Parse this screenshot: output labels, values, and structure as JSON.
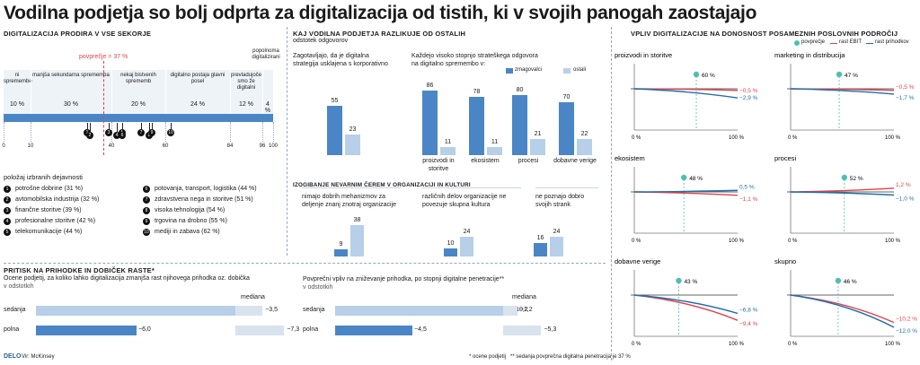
{
  "title": "Vodilna podjetja so bolj odprta za digitalizacija od tistih, ki v svojih panogah zaostajajo",
  "panel1": {
    "heading": "DIGITALIZACIJA PRODIRA V VSE SEKORJE",
    "avg_label": "povprečje = 37 %",
    "top_note": "popolnoma digitalizirani",
    "segments": [
      {
        "label": "ni spremembe",
        "pct": "10 %"
      },
      {
        "label": "manjša sekundarna sprememba",
        "pct": "30 %"
      },
      {
        "label": "nekaj bistvenih sprememb",
        "pct": "20 %"
      },
      {
        "label": "digitalno postaja glavni posel",
        "pct": "24 %"
      },
      {
        "label": "prevladujoče smo že digitalni",
        "pct": "12 %"
      },
      {
        "label": "",
        "pct": "4 %"
      }
    ],
    "axis_ticks": [
      "0",
      "10",
      "40",
      "60",
      "84",
      "96",
      "100"
    ],
    "legend_title": "položaj izbranih dejavnosti",
    "legend": [
      {
        "n": "1",
        "label": "potrošne dobrine  (31 %)"
      },
      {
        "n": "2",
        "label": "avtomobilska industrija (32 %)"
      },
      {
        "n": "3",
        "label": "finančne storitve (39 %)"
      },
      {
        "n": "4",
        "label": "profesionalne storitve  (42 %)"
      },
      {
        "n": "5",
        "label": "telekomunikacije (44 %)"
      },
      {
        "n": "6",
        "label": "potovanja, transport, logistika (44 %)"
      },
      {
        "n": "7",
        "label": "zdravstvena nega in storitve (51 %)"
      },
      {
        "n": "8",
        "label": "visoka tehnologija (54 %)"
      },
      {
        "n": "9",
        "label": "trgovina na drobno (55 %)"
      },
      {
        "n": "10",
        "label": "mediji in zabava (62 %)"
      }
    ]
  },
  "panel2": {
    "heading": "KAJ VODILNA PODJETJA RAZLIKUJE OD OSTALIH",
    "subheading": "odstotek odgovorov",
    "q1": "Zagotavljajo, da je digitalna strategija usklajena s korporativno",
    "q2": "Každejo visoko stopnjo strateškega odgovora na digitalno spremembo v:",
    "legend_lead": "zmagovalci",
    "legend_rest": "ostali",
    "cats": [
      "proizvodi in storitve",
      "ekosistem",
      "procesi",
      "dobavne verige"
    ],
    "culture_heading": "IZOGIBANJE NEVARNIM ČEREM V ORGANIZACIJI IN KULTURI",
    "culture_q": [
      "nimajo dobrih mehanizmov za deljenje znanj znotraj organizacije",
      "različnih delov organizacije ne povezuje skupna kultura",
      "ne poznajo dobro svojih strank"
    ]
  },
  "panel3": {
    "heading": "PRITISK NA PRIHODKE IN DOBIČEK RASTE*",
    "left_title": "Ocene podjetij, za koliko lahko digitalizacija zmanjša rast njihovega prihodka oz. dobička",
    "left_unit": "v odstotkih",
    "right_title": "Povprečni vpliv na zniževanje prihodka, po stopnji digitalne penetracije**",
    "right_unit": "v odstotkih",
    "mediana": "mediana",
    "rows": [
      "sedanja",
      "polna"
    ],
    "source": "Vir: McKinsey",
    "logo": "DELO",
    "foot1": "* ocene podjetij",
    "foot2": "** sedanja povprečna digitalna penetracija je 37 %"
  },
  "panel4": {
    "heading": "VPLIV DIGITALIZACIJE NA DONOSNOST POSAMEZNIH  POSLOVNIH PODROČIJ",
    "legend": [
      "povprečje",
      "rast EBIT",
      "rast prihodkov"
    ],
    "x0": "0 %",
    "x1": "100 %"
  },
  "chart_data": [
    {
      "type": "bar",
      "title": "DIGITALIZACIJA PRODIRA V VSE SEKORJE",
      "categories": [
        "ni spremembe",
        "manjša sekundarna sprememba",
        "nekaj bistvenih sprememb",
        "digitalno postaja glavni posel",
        "prevladujoče smo že digitalni",
        "popolnoma digitalizirani"
      ],
      "values": [
        10,
        30,
        20,
        24,
        12,
        4
      ],
      "average": 37,
      "markers": [
        {
          "n": 1,
          "value": 31
        },
        {
          "n": 2,
          "value": 32
        },
        {
          "n": 3,
          "value": 39
        },
        {
          "n": 4,
          "value": 42
        },
        {
          "n": 5,
          "value": 44
        },
        {
          "n": 6,
          "value": 44
        },
        {
          "n": 7,
          "value": 51
        },
        {
          "n": 8,
          "value": 54
        },
        {
          "n": 9,
          "value": 55
        },
        {
          "n": 10,
          "value": 62
        }
      ]
    },
    {
      "type": "bar",
      "title": "Zagotavljajo, da je digitalna strategija usklajena s korporativno",
      "categories": [
        ""
      ],
      "series": [
        {
          "name": "zmagovalci",
          "values": [
            55
          ]
        },
        {
          "name": "ostali",
          "values": [
            23
          ]
        }
      ]
    },
    {
      "type": "bar",
      "title": "Každejo visoko stopnjo strateškega odgovora na digitalno spremembo v:",
      "categories": [
        "proizvodi in storitve",
        "ekosistem",
        "procesi",
        "dobavne verige"
      ],
      "series": [
        {
          "name": "zmagovalci",
          "values": [
            86,
            78,
            80,
            70
          ]
        },
        {
          "name": "ostali",
          "values": [
            11,
            11,
            21,
            22
          ]
        }
      ]
    },
    {
      "type": "bar",
      "title": "IZOGIBANJE NEVARNIM ČEREM V ORGANIZACIJI IN KULTURI",
      "categories": [
        "nimajo dobrih mehanizmov za deljenje znanj znotraj organizacije",
        "različnih delov organizacije ne povezuje skupna kultura",
        "ne poznajo dobro svojih strank"
      ],
      "series": [
        {
          "name": "zmagovalci",
          "values": [
            9,
            10,
            16
          ]
        },
        {
          "name": "ostali",
          "values": [
            38,
            24,
            24
          ]
        }
      ]
    },
    {
      "type": "bar",
      "title": "Ocene podjetij, za koliko lahko digitalizacija zmanjša rast njihovega prihodka oz. dobička",
      "categories": [
        "sedanja",
        "polna"
      ],
      "values": [
        -12.0,
        -6.0
      ],
      "median": [
        -3.5,
        -7.3
      ],
      "value_labels": [
        "−12,0",
        "−6,0"
      ],
      "median_labels": [
        "−3,5",
        "−7,3"
      ]
    },
    {
      "type": "bar",
      "title": "Povprečni vpliv na zniževanje prihodka, po stopnji digitalne penetracije**",
      "categories": [
        "sedanja",
        "polna"
      ],
      "values": [
        -10.2,
        -4.5
      ],
      "median": [
        -1.2,
        -5.3
      ],
      "value_labels": [
        "−10,2",
        "−4,5"
      ],
      "median_labels": [
        "−1,2",
        "−5,3"
      ]
    },
    {
      "type": "line",
      "title": "VPLIV DIGITALIZACIJE NA DONOSNOST POSAMEZNIH  POSLOVNIH PODROČIJ",
      "xlim": [
        0,
        100
      ],
      "panels": [
        {
          "name": "proizvodi in storitve",
          "average": 60,
          "ebit": -0.5,
          "revenue": -2.9,
          "ebit_label": "−0,5 %",
          "revenue_label": "−2,9 %"
        },
        {
          "name": "marketing in distribucija",
          "average": 47,
          "ebit": -0.5,
          "revenue": -1.7,
          "ebit_label": "−0,5 %",
          "revenue_label": "−1,7 %"
        },
        {
          "name": "ekosistem",
          "average": 48,
          "ebit": -1.1,
          "revenue": 0.5,
          "ebit_label": "−1,1 %",
          "revenue_label": "0,5 %"
        },
        {
          "name": "procesi",
          "average": 52,
          "ebit": 1.2,
          "revenue": -1.0,
          "ebit_label": "1,2 %",
          "revenue_label": "−1,0 %"
        },
        {
          "name": "dobavne verige",
          "average": 43,
          "ebit": -9.4,
          "revenue": -6.8,
          "ebit_label": "−9,4 %",
          "revenue_label": "−6,8 %"
        },
        {
          "name": "skupno",
          "average": 46,
          "ebit": -10.2,
          "revenue": -12.0,
          "ebit_label": "−10,2 %",
          "revenue_label": "−12,0 %"
        }
      ]
    }
  ]
}
